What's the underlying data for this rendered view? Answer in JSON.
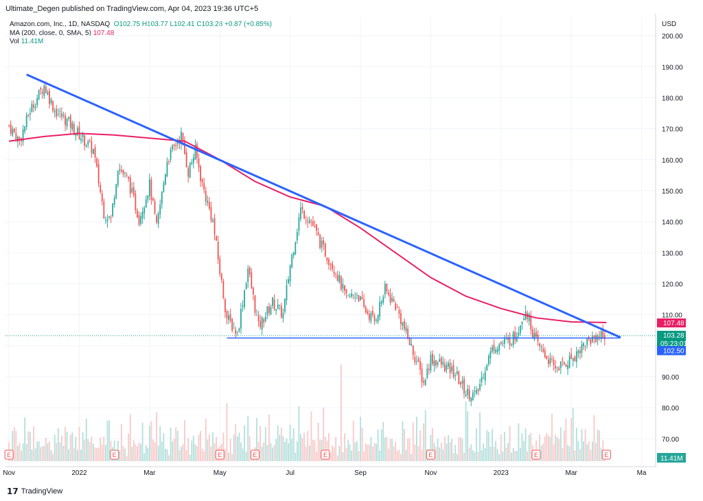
{
  "header": {
    "publish_line": "Ultimate_Degen published on TradingView.com, Apr 04, 2023 19:36 UTC+5"
  },
  "legend": {
    "symbol": "Amazon.com, Inc., 1D, NASDAQ",
    "ohlc": "O102.75  H103.77  L102.41  C103.28  +0.87 (+0.85%)",
    "ma_label": "MA (200, close, 0, SMA, 5)",
    "ma_value": "107.48",
    "vol_label": "Vol",
    "vol_value": "11.41M"
  },
  "footer": {
    "brand": "TradingView"
  },
  "colors": {
    "up": "#26a69a",
    "down": "#ef5350",
    "ma": "#e91e63",
    "trend": "#2962ff",
    "support": "#2962ff"
  },
  "chart_data": {
    "type": "candlestick",
    "currency_label": "USD",
    "y_ticks": [
      70,
      80,
      90,
      100,
      110,
      120,
      130,
      140,
      150,
      160,
      170,
      180,
      190,
      200
    ],
    "ylim": [
      61,
      206
    ],
    "x_labels": [
      "Nov",
      "2022",
      "Mar",
      "May",
      "Jul",
      "Sep",
      "Nov",
      "2023",
      "Mar",
      "Ma"
    ],
    "x_label_month_index": [
      0,
      2,
      4,
      6,
      8,
      10,
      12,
      14,
      16,
      18
    ],
    "x_range_months": [
      -0.1,
      18.4
    ],
    "price_path_months": [
      0,
      0.3,
      0.6,
      1.0,
      1.3,
      1.7,
      2.0,
      2.4,
      2.7,
      2.9,
      3.1,
      3.4,
      3.7,
      4.0,
      4.2,
      4.5,
      4.9,
      5.1,
      5.3,
      5.5,
      5.8,
      6.0,
      6.2,
      6.5,
      6.8,
      7.1,
      7.5,
      7.8,
      8.0,
      8.3,
      8.6,
      8.9,
      9.1,
      9.3,
      9.6,
      9.9,
      10.1,
      10.4,
      10.7,
      11.0,
      11.3,
      11.6,
      11.8,
      12.0,
      12.3,
      12.7,
      13.0,
      13.3,
      13.6,
      13.8,
      14.1,
      14.4,
      14.7,
      15.0,
      15.2,
      15.5,
      15.8,
      16.1,
      16.4,
      16.7,
      17.0
    ],
    "price_path_close": [
      171,
      166,
      176,
      184,
      176,
      172,
      168,
      163,
      143,
      141,
      158,
      153,
      141,
      152,
      138,
      160,
      168,
      156,
      163,
      152,
      140,
      124,
      109,
      104,
      125,
      106,
      114,
      110,
      126,
      144,
      140,
      132,
      128,
      124,
      115,
      117,
      112,
      108,
      118,
      113,
      104,
      95,
      88,
      96,
      94,
      91,
      85,
      84,
      95,
      100,
      101,
      103,
      112,
      101,
      98,
      93,
      94,
      97,
      101,
      103,
      104
    ],
    "candle_step_months": 0.05,
    "volume_pct_of_max": [
      55,
      40,
      70,
      35,
      90,
      45,
      60,
      30,
      80,
      100,
      50,
      65
    ],
    "ma200": {
      "name": "MA (200, close, 0, SMA, 5)",
      "x_months": [
        0,
        1,
        2,
        3,
        4,
        5,
        6,
        7,
        8,
        9,
        10,
        11,
        12,
        13,
        14,
        15,
        16,
        17
      ],
      "values": [
        166,
        167.5,
        168.5,
        168,
        167,
        166,
        160,
        153,
        148,
        145,
        138,
        130,
        122,
        116,
        112,
        109,
        107.7,
        107.48
      ]
    },
    "trendline": {
      "x_months": [
        0.5,
        17.4
      ],
      "values": [
        187.5,
        102.7
      ]
    },
    "support_line": {
      "x_months": [
        6.2,
        17.4
      ],
      "values": [
        102.5,
        102.5
      ]
    },
    "last_price_line": 103.28,
    "price_labels": [
      {
        "value": 107.48,
        "text": "107.48",
        "color": "#e91e63"
      },
      {
        "value": 103.28,
        "text": "103.28",
        "text2": "05:23:01",
        "color": "#089981"
      },
      {
        "value": 102.5,
        "text": "102.50",
        "color": "#2962ff"
      }
    ],
    "volume_label": "11.41M",
    "events_months": [
      0,
      3,
      6,
      7,
      9,
      12,
      15,
      17
    ]
  }
}
